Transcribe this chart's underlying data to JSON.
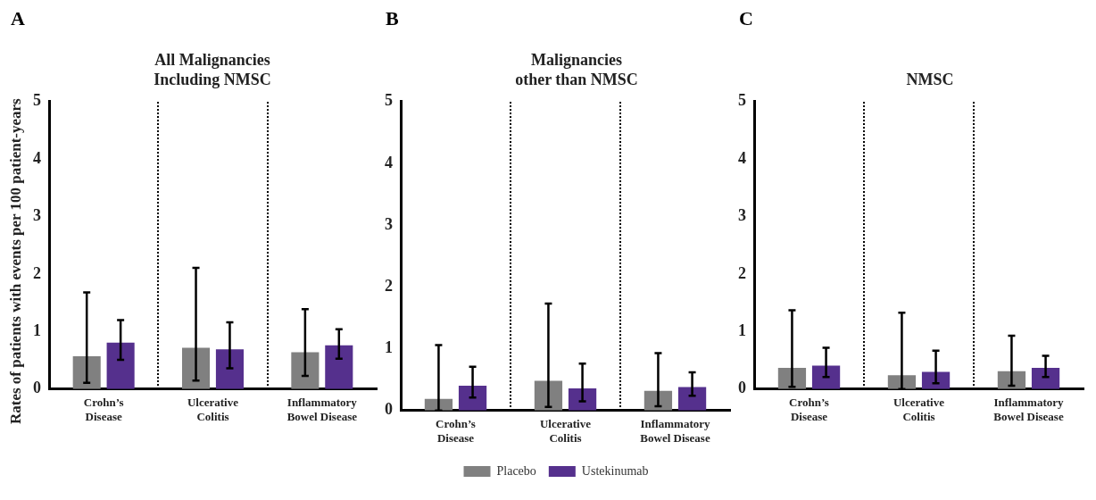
{
  "chart_data": [
    {
      "type": "bar",
      "title": "All Malignancies\nIncluding NMSC",
      "annotations": [
        "A"
      ],
      "ylabel": "Rates of patients with events per 100 patient-years",
      "categories": [
        "Crohn’s\nDisease",
        "Ulcerative\nColitis",
        "Inflammatory\nBowel Disease"
      ],
      "ylim": [
        0,
        5
      ],
      "yticks": [
        0,
        1,
        2,
        3,
        4,
        5
      ],
      "grid": false,
      "legend": false,
      "series": [
        {
          "color": "#808080",
          "values": [
            0.57,
            0.72,
            0.64
          ],
          "errors": [
            [
              0.11,
              1.68
            ],
            [
              0.15,
              2.11
            ],
            [
              0.23,
              1.39
            ]
          ]
        },
        {
          "color": "#55308d",
          "values": [
            0.81,
            0.69,
            0.76
          ],
          "errors": [
            [
              0.51,
              1.2
            ],
            [
              0.36,
              1.16
            ],
            [
              0.53,
              1.04
            ]
          ]
        }
      ]
    },
    {
      "type": "bar",
      "title": "Malignancies\nother than NMSC",
      "annotations": [
        "B"
      ],
      "categories": [
        "Crohn’s\nDisease",
        "Ulcerative\nColitis",
        "Inflammatory\nBowel Disease"
      ],
      "ylim": [
        0,
        5
      ],
      "yticks": [
        0,
        1,
        2,
        3,
        4,
        5
      ],
      "grid": false,
      "legend": "bottom",
      "series": [
        {
          "name": "Placebo",
          "color": "#808080",
          "values": [
            0.19,
            0.48,
            0.32
          ],
          "errors": [
            [
              0,
              1.06
            ],
            [
              0.06,
              1.73
            ],
            [
              0.07,
              0.93
            ]
          ]
        },
        {
          "name": "Ustekinumab",
          "color": "#55308d",
          "values": [
            0.4,
            0.36,
            0.38
          ],
          "errors": [
            [
              0.21,
              0.71
            ],
            [
              0.15,
              0.76
            ],
            [
              0.24,
              0.62
            ]
          ]
        }
      ]
    },
    {
      "type": "bar",
      "title": "NMSC",
      "annotations": [
        "C"
      ],
      "categories": [
        "Crohn’s\nDisease",
        "Ulcerative\nColitis",
        "Inflammatory\nBowel Disease"
      ],
      "ylim": [
        0,
        5
      ],
      "yticks": [
        0,
        1,
        2,
        3,
        4,
        5
      ],
      "grid": false,
      "legend": false,
      "series": [
        {
          "color": "#808080",
          "values": [
            0.37,
            0.24,
            0.31
          ],
          "errors": [
            [
              0.04,
              1.37
            ],
            [
              0,
              1.33
            ],
            [
              0.06,
              0.93
            ]
          ]
        },
        {
          "color": "#55308d",
          "values": [
            0.41,
            0.3,
            0.37
          ],
          "errors": [
            [
              0.21,
              0.72
            ],
            [
              0.1,
              0.67
            ],
            [
              0.21,
              0.58
            ]
          ]
        }
      ]
    }
  ]
}
